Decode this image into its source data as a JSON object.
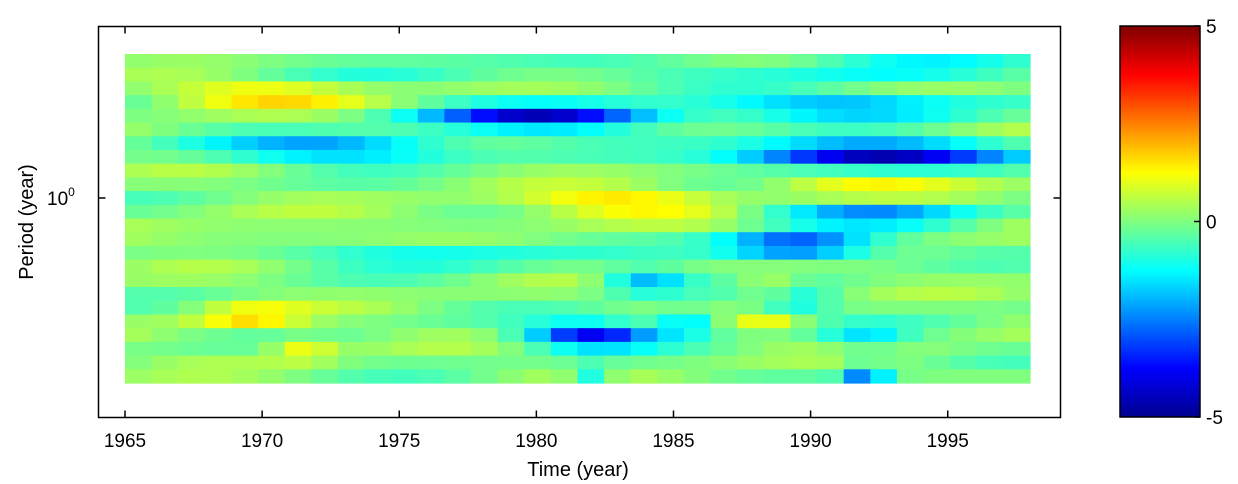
{
  "chart_data": {
    "type": "heatmap",
    "title": "",
    "xlabel": "Time (year)",
    "ylabel": "Period (year)",
    "xlim": [
      1965,
      1998
    ],
    "x_ticks": [
      {
        "value": 1965,
        "label": "1965"
      },
      {
        "value": 1970,
        "label": "1970"
      },
      {
        "value": 1975,
        "label": "1975"
      },
      {
        "value": 1980,
        "label": "1980"
      },
      {
        "value": 1985,
        "label": "1985"
      },
      {
        "value": 1990,
        "label": "1990"
      },
      {
        "value": 1995,
        "label": "1995"
      }
    ],
    "y_scale": "log",
    "y_ticks": [
      {
        "value": 1,
        "label_base": "10",
        "label_exp": "0"
      }
    ],
    "colormap": "jet",
    "clim": [
      -5,
      5
    ],
    "colorbar_ticks": [
      {
        "value": 5,
        "label": "5"
      },
      {
        "value": 0,
        "label": "0"
      },
      {
        "value": -5,
        "label": "-5"
      }
    ],
    "rows": 24,
    "time_samples": 34,
    "features": [
      {
        "t0": 1965,
        "t1": 1998,
        "row": 12,
        "amp": 0.25
      },
      {
        "t0": 1965,
        "t1": 1975,
        "row": 3,
        "amp": 1.7
      },
      {
        "t0": 1975,
        "t1": 1986,
        "row": 4.6,
        "amp": -4.2
      },
      {
        "t0": 1985,
        "t1": 1998,
        "row": 3.8,
        "amp": -2.3
      },
      {
        "t0": 1967,
        "t1": 1979,
        "row": 6.9,
        "amp": -2.6
      },
      {
        "t0": 1986,
        "t1": 1998,
        "row": 7.3,
        "amp": -5.0
      },
      {
        "t0": 1978,
        "t1": 1988,
        "row": 10.8,
        "amp": 1.7
      },
      {
        "t0": 1987,
        "t1": 1996,
        "row": 9.8,
        "amp": 1.4
      },
      {
        "t0": 1987,
        "t1": 1997,
        "row": 11.6,
        "amp": -2.4
      },
      {
        "t0": 1986,
        "t1": 1993,
        "row": 14,
        "amp": -3.8
      },
      {
        "t0": 1970,
        "t1": 1982,
        "row": 14.6,
        "amp": -1.5
      },
      {
        "t0": 1965,
        "t1": 1975,
        "row": 13.5,
        "amp": 0.7
      },
      {
        "t0": 1982,
        "t1": 1986,
        "row": 16.6,
        "amp": -2.2
      },
      {
        "t0": 1987,
        "t1": 1990,
        "row": 17.2,
        "amp": 1.6
      },
      {
        "t0": 1987,
        "t1": 1991,
        "row": 18.1,
        "amp": -2.1
      },
      {
        "t0": 1967,
        "t1": 1972,
        "row": 19.2,
        "amp": 1.7
      },
      {
        "t0": 1987,
        "t1": 1990,
        "row": 19.2,
        "amp": 1.3
      },
      {
        "t0": 1979,
        "t1": 1985,
        "row": 20.5,
        "amp": -3.9
      },
      {
        "t0": 1984,
        "t1": 1987,
        "row": 19.6,
        "amp": -1.9
      },
      {
        "t0": 1970,
        "t1": 1973,
        "row": 21.5,
        "amp": 1.3
      },
      {
        "t0": 1990,
        "t1": 1994,
        "row": 20.7,
        "amp": -1.4
      },
      {
        "t0": 1981,
        "t1": 1983,
        "row": 23.6,
        "amp": -1.5
      },
      {
        "t0": 1991,
        "t1": 1993,
        "row": 23.6,
        "amp": -2.6
      },
      {
        "t0": 1965,
        "t1": 1998,
        "row": 1.2,
        "amp": -0.6
      },
      {
        "t0": 1988,
        "t1": 1998,
        "row": 1.0,
        "amp": -1.2
      }
    ]
  }
}
